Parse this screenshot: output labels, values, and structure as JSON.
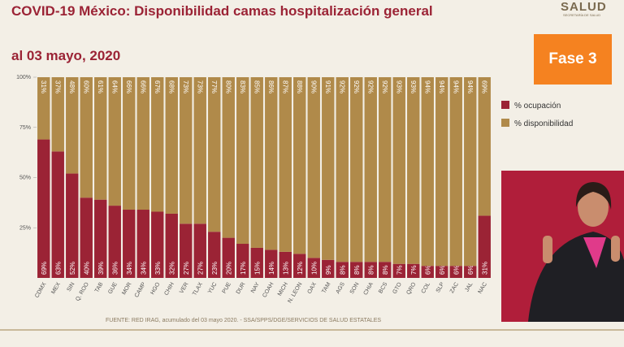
{
  "logo": "SALUD",
  "logo_sub": "SECRETARÍA DE SALUD",
  "badge": "Fase 3",
  "source": "FUENTE: RED IRAG, acumulado del 03 mayo 2020.  -  SSA/SPPS/DGE/SERVICIOS DE SALUD ESTATALES",
  "chart_data": {
    "type": "stacked-bar",
    "title": "COVID-19 México: Disponibilidad camas hospitalización general",
    "subtitle": "al 03 mayo, 2020",
    "categories": [
      "CDMX",
      "MEX",
      "SIN",
      "Q. ROO",
      "TAB",
      "GUE",
      "MOR",
      "CAMP",
      "HGO",
      "CHIH",
      "VER",
      "TLAX",
      "YUC",
      "PUE",
      "DUR",
      "NAY",
      "COAH",
      "MICH",
      "N. LEON",
      "OAX",
      "TAM",
      "AGS",
      "SON",
      "CHIA",
      "BCS",
      "GTO",
      "QRO",
      "COL",
      "SLP",
      "ZAC",
      "JAL",
      "NAC"
    ],
    "series": [
      {
        "name": "% ocupación",
        "color": "#9b2335",
        "values": [
          69,
          63,
          52,
          40,
          39,
          36,
          34,
          34,
          33,
          32,
          27,
          27,
          23,
          20,
          17,
          15,
          14,
          13,
          12,
          10,
          9,
          8,
          8,
          8,
          8,
          7,
          7,
          6,
          6,
          6,
          6,
          31
        ],
        "value_labels": [
          "69%",
          "63%",
          "52%",
          "40%",
          "39%",
          "36%",
          "34%",
          "34%",
          "33%",
          "32%",
          "27%",
          "27%",
          "23%",
          "20%",
          "17%",
          "15%",
          "14%",
          "13%",
          "12%",
          "10%",
          "9%",
          "8%",
          "8%",
          "8%",
          "8%",
          "7%",
          "7%",
          "6%",
          "6%",
          "6%",
          "6%",
          "31%"
        ]
      },
      {
        "name": "% disponibilidad",
        "color": "#b08a4a",
        "values": [
          31,
          37,
          48,
          60,
          61,
          64,
          66,
          66,
          67,
          68,
          73,
          73,
          77,
          80,
          83,
          85,
          86,
          87,
          88,
          90,
          91,
          92,
          92,
          92,
          92,
          93,
          93,
          94,
          94,
          94,
          94,
          69
        ],
        "value_labels": [
          "31%",
          "37%",
          "48%",
          "60%",
          "61%",
          "64%",
          "66%",
          "66%",
          "67%",
          "68%",
          "73%",
          "73%",
          "77%",
          "80%",
          "83%",
          "85%",
          "86%",
          "87%",
          "88%",
          "90%",
          "91%",
          "92%",
          "92%",
          "92%",
          "92%",
          "93%",
          "93%",
          "94%",
          "94%",
          "94%",
          "94%",
          "69%"
        ]
      }
    ],
    "ylim": [
      0,
      100
    ],
    "yticks": [
      {
        "value": 25,
        "label": "25%"
      },
      {
        "value": 50,
        "label": "50%"
      },
      {
        "value": 75,
        "label": "75%"
      },
      {
        "value": 100,
        "label": "100%"
      }
    ],
    "legend": "right"
  }
}
